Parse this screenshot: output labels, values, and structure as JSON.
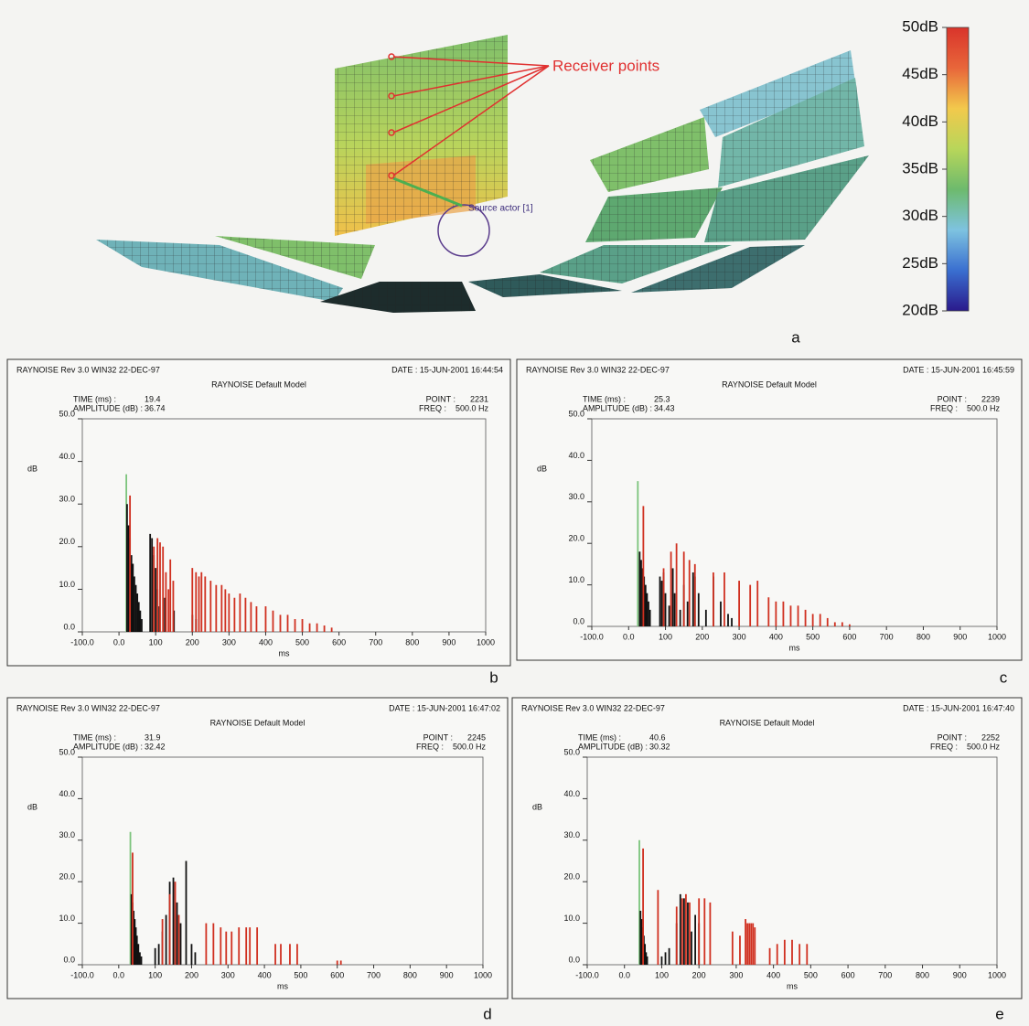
{
  "figure": {
    "annotation_receivers": "Receiver points",
    "annotation_source": "Source actor [1]",
    "panel": "a",
    "colorbar": {
      "lim": [
        20,
        50
      ],
      "ticks": [
        {
          "value": 50,
          "label": "50dB"
        },
        {
          "value": 45,
          "label": "45dB"
        },
        {
          "value": 40,
          "label": "40dB"
        },
        {
          "value": 35,
          "label": "35dB"
        },
        {
          "value": 30,
          "label": "30dB"
        },
        {
          "value": 25,
          "label": "25dB"
        },
        {
          "value": 20,
          "label": "20dB"
        }
      ],
      "colors": [
        "#2a1a8c",
        "#3a6fd0",
        "#7ec3e0",
        "#6dba6d",
        "#b8d65a",
        "#f2c94c",
        "#e8663a",
        "#d9342b"
      ]
    }
  },
  "chart_data": [
    {
      "type": "stem",
      "program": "RAYNOISE Rev 3.0  WIN32  22-DEC-97",
      "date": "DATE : 15-JUN-2001 16:44:54",
      "title": "RAYNOISE Default Model",
      "time_label": "TIME (ms)      :",
      "time_value": "19.4",
      "amplitude_label": "AMPLITUDE (dB) :",
      "amplitude_value": "36.74",
      "point_label": "POINT :",
      "point_value": "2231",
      "freq_label": "FREQ :",
      "freq_value": "500.0 Hz",
      "ylabel": "dB",
      "xlabel": "ms",
      "panel": "b",
      "xlim": [
        -100,
        1000
      ],
      "ylim": [
        0,
        50
      ],
      "xticks": [
        {
          "value": -100,
          "label": "-100.0"
        },
        {
          "value": 0,
          "label": "0.0"
        },
        100,
        200,
        300,
        400,
        500,
        600,
        700,
        800,
        900,
        1000
      ],
      "yticks": [
        {
          "value": 0,
          "label": "0.0"
        },
        {
          "value": 10,
          "label": "10.0"
        },
        {
          "value": 20,
          "label": "20.0"
        },
        {
          "value": 30,
          "label": "30.0"
        },
        {
          "value": 40,
          "label": "40.0"
        },
        {
          "value": 50,
          "label": "50.0"
        }
      ],
      "series": [
        {
          "color": "#7cc47c",
          "x": [
            20
          ],
          "values": [
            37
          ]
        },
        {
          "color": "#111111",
          "x": [
            22,
            26,
            30,
            34,
            38,
            42,
            46,
            50,
            54,
            58,
            62,
            85,
            90,
            95,
            100,
            105,
            110,
            125,
            150,
            200,
            210
          ],
          "values": [
            30,
            25,
            22,
            18,
            16,
            13,
            11,
            9,
            7,
            5,
            3,
            23,
            22,
            18,
            15,
            10,
            6,
            8,
            5,
            4,
            3
          ]
        },
        {
          "color": "#d03020",
          "x": [
            30,
            95,
            105,
            112,
            120,
            128,
            135,
            140,
            148,
            200,
            210,
            218,
            225,
            235,
            250,
            265,
            280,
            290,
            300,
            315,
            330,
            345,
            360,
            375,
            400,
            420,
            440,
            460,
            480,
            500,
            520,
            540,
            560,
            580
          ],
          "values": [
            32,
            20,
            22,
            21,
            20,
            14,
            10,
            17,
            12,
            15,
            14,
            13,
            14,
            13,
            12,
            11,
            11,
            10,
            9,
            8,
            9,
            8,
            7,
            6,
            6,
            5,
            4,
            4,
            3,
            3,
            2,
            2,
            1.5,
            1
          ]
        }
      ]
    },
    {
      "type": "stem",
      "program": "RAYNOISE Rev 3.0  WIN32  22-DEC-97",
      "date": "DATE : 15-JUN-2001 16:45:59",
      "title": "RAYNOISE Default Model",
      "time_label": "TIME (ms)      :",
      "time_value": "25.3",
      "amplitude_label": "AMPLITUDE (dB) :",
      "amplitude_value": "34.43",
      "point_label": "POINT :",
      "point_value": "2239",
      "freq_label": "FREQ :",
      "freq_value": "500.0 Hz",
      "ylabel": "dB",
      "xlabel": "ms",
      "panel": "c",
      "xlim": [
        -100,
        1000
      ],
      "ylim": [
        0,
        50
      ],
      "xticks": [
        {
          "value": -100,
          "label": "-100.0"
        },
        {
          "value": 0,
          "label": "0.0"
        },
        100,
        200,
        300,
        400,
        500,
        600,
        700,
        800,
        900,
        1000
      ],
      "yticks": [
        {
          "value": 0,
          "label": "0.0"
        },
        {
          "value": 10,
          "label": "10.0"
        },
        {
          "value": 20,
          "label": "20.0"
        },
        {
          "value": 30,
          "label": "30.0"
        },
        {
          "value": 40,
          "label": "40.0"
        },
        {
          "value": 50,
          "label": "50.0"
        }
      ],
      "series": [
        {
          "color": "#7cc47c",
          "x": [
            25
          ],
          "values": [
            35
          ]
        },
        {
          "color": "#111111",
          "x": [
            30,
            34,
            38,
            42,
            46,
            50,
            54,
            58,
            85,
            90,
            95,
            100,
            110,
            120,
            125,
            140,
            150,
            160,
            175,
            180,
            190,
            210,
            230,
            250,
            270,
            280
          ],
          "values": [
            18,
            16,
            14,
            12,
            10,
            8,
            6,
            4,
            12,
            11,
            13,
            8,
            5,
            14,
            8,
            4,
            10,
            6,
            13,
            12,
            8,
            4,
            12,
            6,
            3,
            2
          ]
        },
        {
          "color": "#d03020",
          "x": [
            40,
            95,
            115,
            130,
            150,
            165,
            180,
            230,
            260,
            300,
            330,
            350,
            380,
            400,
            420,
            440,
            460,
            480,
            500,
            520,
            540,
            560,
            580,
            600
          ],
          "values": [
            29,
            14,
            18,
            20,
            18,
            16,
            15,
            13,
            13,
            11,
            10,
            11,
            7,
            6,
            6,
            5,
            5,
            4,
            3,
            3,
            2,
            1,
            1,
            0.5
          ]
        }
      ]
    },
    {
      "type": "stem",
      "program": "RAYNOISE Rev 3.0  WIN32  22-DEC-97",
      "date": "DATE : 15-JUN-2001 16:47:02",
      "title": "RAYNOISE Default Model",
      "time_label": "TIME (ms)      :",
      "time_value": "31.9",
      "amplitude_label": "AMPLITUDE (dB) :",
      "amplitude_value": "32.42",
      "point_label": "POINT :",
      "point_value": "2245",
      "freq_label": "FREQ :",
      "freq_value": "500.0 Hz",
      "ylabel": "dB",
      "xlabel": "ms",
      "panel": "d",
      "xlim": [
        -100,
        1000
      ],
      "ylim": [
        0,
        50
      ],
      "xticks": [
        {
          "value": -100,
          "label": "-100.0"
        },
        {
          "value": 0,
          "label": "0.0"
        },
        100,
        200,
        300,
        400,
        500,
        600,
        700,
        800,
        900,
        1000
      ],
      "yticks": [
        {
          "value": 0,
          "label": "0.0"
        },
        {
          "value": 10,
          "label": "10.0"
        },
        {
          "value": 20,
          "label": "20.0"
        },
        {
          "value": 30,
          "label": "30.0"
        },
        {
          "value": 40,
          "label": "40.0"
        },
        {
          "value": 50,
          "label": "50.0"
        }
      ],
      "series": [
        {
          "color": "#7cc47c",
          "x": [
            32
          ],
          "values": [
            32
          ]
        },
        {
          "color": "#111111",
          "x": [
            35,
            38,
            41,
            44,
            47,
            50,
            54,
            58,
            62,
            100,
            110,
            120,
            130,
            140,
            150,
            160,
            170,
            185,
            200,
            210
          ],
          "values": [
            17,
            15,
            13,
            11,
            9,
            7,
            5,
            3,
            2,
            4,
            5,
            8,
            12,
            20,
            21,
            15,
            10,
            25,
            5,
            3
          ]
        },
        {
          "color": "#d03020",
          "x": [
            38,
            120,
            140,
            155,
            165,
            240,
            260,
            280,
            295,
            310,
            330,
            350,
            360,
            380,
            430,
            445,
            470,
            490,
            600,
            610
          ],
          "values": [
            27,
            11,
            17,
            20,
            12,
            10,
            10,
            9,
            8,
            8,
            9,
            9,
            9,
            9,
            5,
            5,
            5,
            5,
            1,
            1
          ]
        }
      ]
    },
    {
      "type": "stem",
      "program": "RAYNOISE Rev 3.0  WIN32  22-DEC-97",
      "date": "DATE : 15-JUN-2001 16:47:40",
      "title": "RAYNOISE Default Model",
      "time_label": "TIME (ms)      :",
      "time_value": "40.6",
      "amplitude_label": "AMPLITUDE (dB) :",
      "amplitude_value": "30.32",
      "point_label": "POINT :",
      "point_value": "2252",
      "freq_label": "FREQ :",
      "freq_value": "500.0 Hz",
      "ylabel": "dB",
      "xlabel": "ms",
      "panel": "e",
      "xlim": [
        -100,
        1000
      ],
      "ylim": [
        0,
        50
      ],
      "xticks": [
        {
          "value": -100,
          "label": "-100.0"
        },
        {
          "value": 0,
          "label": "0.0"
        },
        100,
        200,
        300,
        400,
        500,
        600,
        700,
        800,
        900,
        1000
      ],
      "yticks": [
        {
          "value": 0,
          "label": "0.0"
        },
        {
          "value": 10,
          "label": "10.0"
        },
        {
          "value": 20,
          "label": "20.0"
        },
        {
          "value": 30,
          "label": "30.0"
        },
        {
          "value": 40,
          "label": "40.0"
        },
        {
          "value": 50,
          "label": "50.0"
        }
      ],
      "series": [
        {
          "color": "#7cc47c",
          "x": [
            40
          ],
          "values": [
            30
          ]
        },
        {
          "color": "#111111",
          "x": [
            43,
            46,
            49,
            52,
            55,
            58,
            61,
            100,
            110,
            120,
            140,
            150,
            160,
            170,
            180,
            190,
            200
          ],
          "values": [
            13,
            11,
            9,
            7,
            5,
            3,
            2,
            2,
            3,
            4,
            10,
            17,
            16,
            15,
            8,
            12,
            10
          ]
        },
        {
          "color": "#d03020",
          "x": [
            50,
            90,
            140,
            155,
            165,
            175,
            200,
            215,
            230,
            290,
            310,
            325,
            330,
            335,
            340,
            345,
            350,
            390,
            410,
            430,
            450,
            470,
            490
          ],
          "values": [
            28,
            18,
            14,
            16,
            17,
            15,
            16,
            16,
            15,
            8,
            7,
            11,
            10,
            10,
            10,
            10,
            9,
            4,
            5,
            6,
            6,
            5,
            5
          ]
        }
      ]
    }
  ]
}
